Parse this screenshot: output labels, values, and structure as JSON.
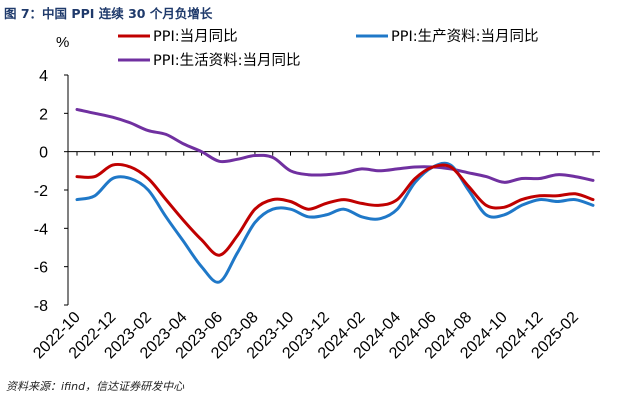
{
  "figure": {
    "title": "图 7：中国 PPI 连续 30 个月负增长",
    "source": "资料来源：ifind，信达证券研发中心",
    "unit": "%"
  },
  "chart_data": {
    "type": "line",
    "title": "图 7：中国 PPI 连续 30 个月负增长",
    "xlabel": "",
    "ylabel": "%",
    "ylim": [
      -8,
      4
    ],
    "yticks": [
      4,
      2,
      0,
      -2,
      -4,
      -6,
      -8
    ],
    "grid": false,
    "legend_position": "top",
    "categories": [
      "2022-10",
      "2022-11",
      "2022-12",
      "2023-01",
      "2023-02",
      "2023-03",
      "2023-04",
      "2023-05",
      "2023-06",
      "2023-07",
      "2023-08",
      "2023-09",
      "2023-10",
      "2023-11",
      "2023-12",
      "2024-01",
      "2024-02",
      "2024-03",
      "2024-04",
      "2024-05",
      "2024-06",
      "2024-07",
      "2024-08",
      "2024-09",
      "2024-10",
      "2024-11",
      "2024-12",
      "2025-01",
      "2025-02",
      "2025-03"
    ],
    "xtick_labels": [
      "2022-10",
      "2022-12",
      "2023-02",
      "2023-04",
      "2023-06",
      "2023-08",
      "2023-10",
      "2023-12",
      "2024-02",
      "2024-04",
      "2024-06",
      "2024-08",
      "2024-10",
      "2024-12",
      "2025-02"
    ],
    "series": [
      {
        "name": "PPI:当月同比",
        "color": "#c00000",
        "values": [
          -1.3,
          -1.3,
          -0.7,
          -0.8,
          -1.4,
          -2.5,
          -3.6,
          -4.6,
          -5.4,
          -4.4,
          -3.0,
          -2.5,
          -2.6,
          -3.0,
          -2.7,
          -2.5,
          -2.7,
          -2.8,
          -2.5,
          -1.4,
          -0.8,
          -0.8,
          -1.8,
          -2.8,
          -2.9,
          -2.5,
          -2.3,
          -2.3,
          -2.2,
          -2.5
        ]
      },
      {
        "name": "PPI:生产资料:当月同比",
        "color": "#1f78c8",
        "values": [
          -2.5,
          -2.3,
          -1.4,
          -1.4,
          -2.0,
          -3.4,
          -4.7,
          -6.0,
          -6.8,
          -5.3,
          -3.7,
          -3.0,
          -3.0,
          -3.4,
          -3.3,
          -3.0,
          -3.4,
          -3.5,
          -3.0,
          -1.6,
          -0.8,
          -0.7,
          -2.0,
          -3.3,
          -3.3,
          -2.8,
          -2.5,
          -2.6,
          -2.5,
          -2.8
        ]
      },
      {
        "name": "PPI:生活资料:当月同比",
        "color": "#7030a0",
        "values": [
          2.2,
          2.0,
          1.8,
          1.5,
          1.1,
          0.9,
          0.4,
          0.0,
          -0.5,
          -0.4,
          -0.2,
          -0.3,
          -1.0,
          -1.2,
          -1.2,
          -1.1,
          -0.9,
          -1.0,
          -0.9,
          -0.8,
          -0.8,
          -0.9,
          -1.1,
          -1.3,
          -1.6,
          -1.4,
          -1.4,
          -1.2,
          -1.3,
          -1.5
        ]
      }
    ]
  }
}
